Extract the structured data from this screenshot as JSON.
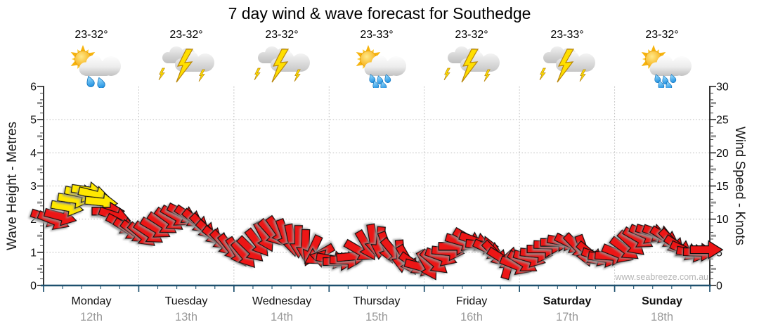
{
  "title": "7 day wind & wave forecast for Southedge",
  "watermark": "www.seabreeze.com.au",
  "days": [
    {
      "name": "Monday",
      "date": "12th",
      "temp": "23-32°",
      "icon": "sun-cloud-rain",
      "drops": 2,
      "bold": false
    },
    {
      "name": "Tuesday",
      "date": "13th",
      "temp": "23-32°",
      "icon": "storm",
      "drops": 0,
      "bold": false
    },
    {
      "name": "Wednesday",
      "date": "14th",
      "temp": "23-32°",
      "icon": "storm",
      "drops": 0,
      "bold": false
    },
    {
      "name": "Thursday",
      "date": "15th",
      "temp": "23-33°",
      "icon": "sun-cloud-rain",
      "drops": 5,
      "bold": false
    },
    {
      "name": "Friday",
      "date": "16th",
      "temp": "23-32°",
      "icon": "storm",
      "drops": 0,
      "bold": false
    },
    {
      "name": "Saturday",
      "date": "17th",
      "temp": "23-33°",
      "icon": "storm",
      "drops": 0,
      "bold": true
    },
    {
      "name": "Sunday",
      "date": "18th",
      "temp": "23-32°",
      "icon": "sun-cloud-rain",
      "drops": 5,
      "bold": true
    }
  ],
  "chart_data": {
    "type": "wind-arrow-series",
    "title": "7 day wind & wave forecast for Southedge",
    "categories": [
      "Monday 12th",
      "Tuesday 13th",
      "Wednesday 14th",
      "Thursday 15th",
      "Friday 16th",
      "Saturday 17th",
      "Sunday 18th"
    ],
    "left_axis": {
      "label": "Wave Height - Metres",
      "min": 0,
      "max": 6,
      "major_step": 1
    },
    "right_axis": {
      "label": "Wind Speed - Knots",
      "min": 0,
      "max": 30,
      "major_step": 5
    },
    "grid": "dotted",
    "legend": "none",
    "arrow_colors": {
      "low": "#ec1212",
      "high": "#ffe800",
      "high_threshold_knots": 11.5
    },
    "samples_per_day": 14,
    "wind_knots": [
      10.2,
      9.8,
      10.4,
      11.8,
      13.0,
      13.9,
      14.3,
      13.7,
      12.6,
      11.2,
      10.5,
      9.2,
      8.4,
      8.0,
      7.6,
      7.9,
      8.6,
      9.3,
      9.9,
      10.4,
      10.8,
      10.3,
      9.6,
      8.8,
      7.9,
      7.1,
      6.3,
      5.6,
      5.0,
      4.6,
      5.4,
      6.4,
      7.3,
      7.9,
      8.2,
      7.6,
      6.8,
      6.6,
      6.0,
      5.2,
      4.6,
      4.0,
      3.9,
      3.6,
      3.8,
      4.4,
      5.2,
      6.0,
      6.8,
      6.4,
      5.7,
      5.0,
      4.4,
      3.8,
      3.2,
      2.8,
      3.0,
      3.5,
      4.3,
      5.1,
      5.9,
      6.6,
      7.0,
      6.7,
      6.1,
      5.4,
      4.7,
      4.0,
      3.4,
      3.0,
      3.5,
      4.1,
      4.8,
      5.5,
      6.1,
      6.5,
      6.6,
      6.3,
      5.8,
      5.2,
      4.7,
      4.3,
      4.1,
      4.4,
      4.8,
      5.5,
      6.3,
      7.1,
      7.7,
      8.0,
      7.8,
      7.2,
      6.5,
      5.8,
      5.2,
      4.9,
      5.0,
      5.4
    ],
    "wind_dir_deg_screen": [
      18,
      22,
      15,
      10,
      8,
      12,
      8,
      14,
      6,
      0,
      18,
      28,
      33,
      36,
      40,
      34,
      30,
      33,
      36,
      30,
      27,
      34,
      40,
      46,
      42,
      38,
      46,
      52,
      58,
      50,
      44,
      52,
      62,
      48,
      55,
      70,
      78,
      90,
      92,
      115,
      150,
      195,
      10,
      0,
      2,
      -5,
      30,
      60,
      80,
      95,
      70,
      50,
      85,
      60,
      35,
      15,
      60,
      40,
      20,
      6,
      0,
      16,
      30,
      20,
      6,
      26,
      46,
      32,
      -74,
      22,
      32,
      16,
      6,
      0,
      2,
      0,
      10,
      26,
      46,
      70,
      40,
      20,
      10,
      4,
      22,
      36,
      42,
      30,
      24,
      16,
      20,
      32,
      46,
      34,
      24,
      10,
      2,
      0
    ]
  }
}
